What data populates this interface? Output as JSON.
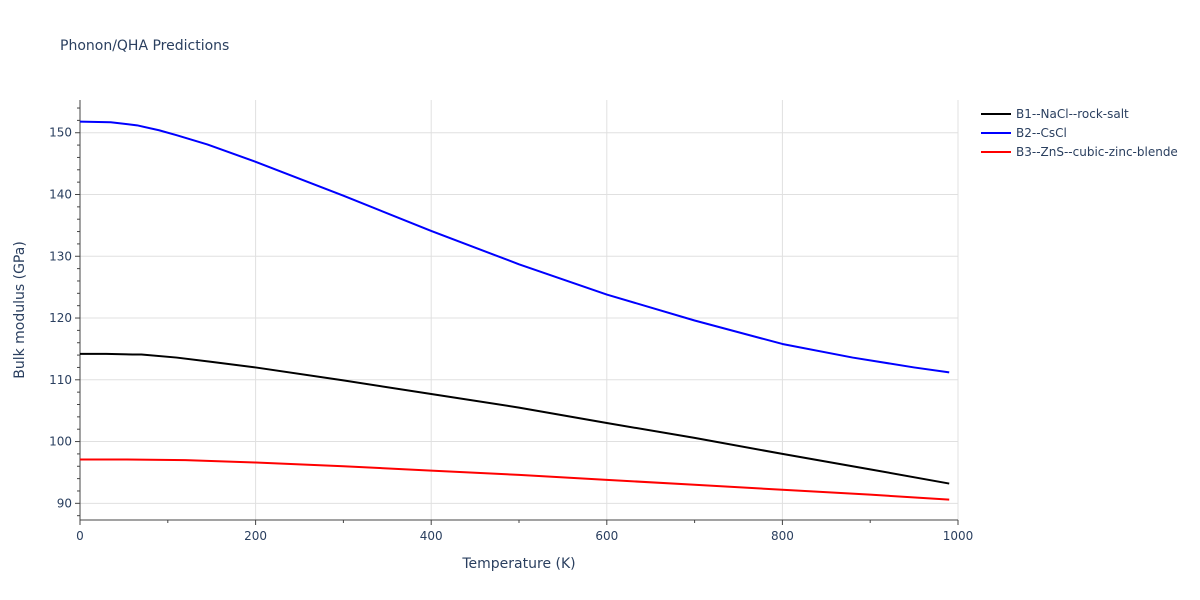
{
  "chart_data": {
    "type": "line",
    "title": "Phonon/QHA Predictions",
    "xlabel": "Temperature (K)",
    "ylabel": "Bulk modulus (GPa)",
    "xlim": [
      0,
      1000
    ],
    "ylim": [
      87.3,
      155.3
    ],
    "x_ticks": [
      0,
      200,
      400,
      600,
      800,
      1000
    ],
    "y_ticks": [
      90,
      100,
      110,
      120,
      130,
      140,
      150
    ],
    "grid": true,
    "legend_position": "right",
    "series": [
      {
        "name": "B1--NaCl--rock-salt",
        "color": "#000000",
        "x": [
          0,
          30,
          60,
          70,
          110,
          150,
          200,
          300,
          400,
          500,
          600,
          700,
          800,
          900,
          990
        ],
        "y": [
          114.2,
          114.2,
          114.1,
          114.1,
          113.6,
          112.9,
          112.0,
          109.9,
          107.7,
          105.5,
          103.0,
          100.6,
          98.0,
          95.5,
          93.2
        ]
      },
      {
        "name": "B2--CsCl",
        "color": "#0000ff",
        "x": [
          0,
          35,
          65,
          90,
          110,
          145,
          200,
          300,
          400,
          500,
          600,
          700,
          800,
          880,
          950,
          990
        ],
        "y": [
          151.8,
          151.7,
          151.2,
          150.4,
          149.6,
          148.1,
          145.3,
          139.8,
          134.1,
          128.7,
          123.8,
          119.6,
          115.8,
          113.6,
          112.0,
          111.2
        ]
      },
      {
        "name": "B3--ZnS--cubic-zinc-blende",
        "color": "#ff0000",
        "x": [
          0,
          50,
          120,
          200,
          300,
          400,
          500,
          600,
          700,
          800,
          900,
          990
        ],
        "y": [
          97.1,
          97.1,
          97.0,
          96.6,
          96.0,
          95.3,
          94.6,
          93.8,
          93.0,
          92.2,
          91.4,
          90.6
        ]
      }
    ]
  }
}
